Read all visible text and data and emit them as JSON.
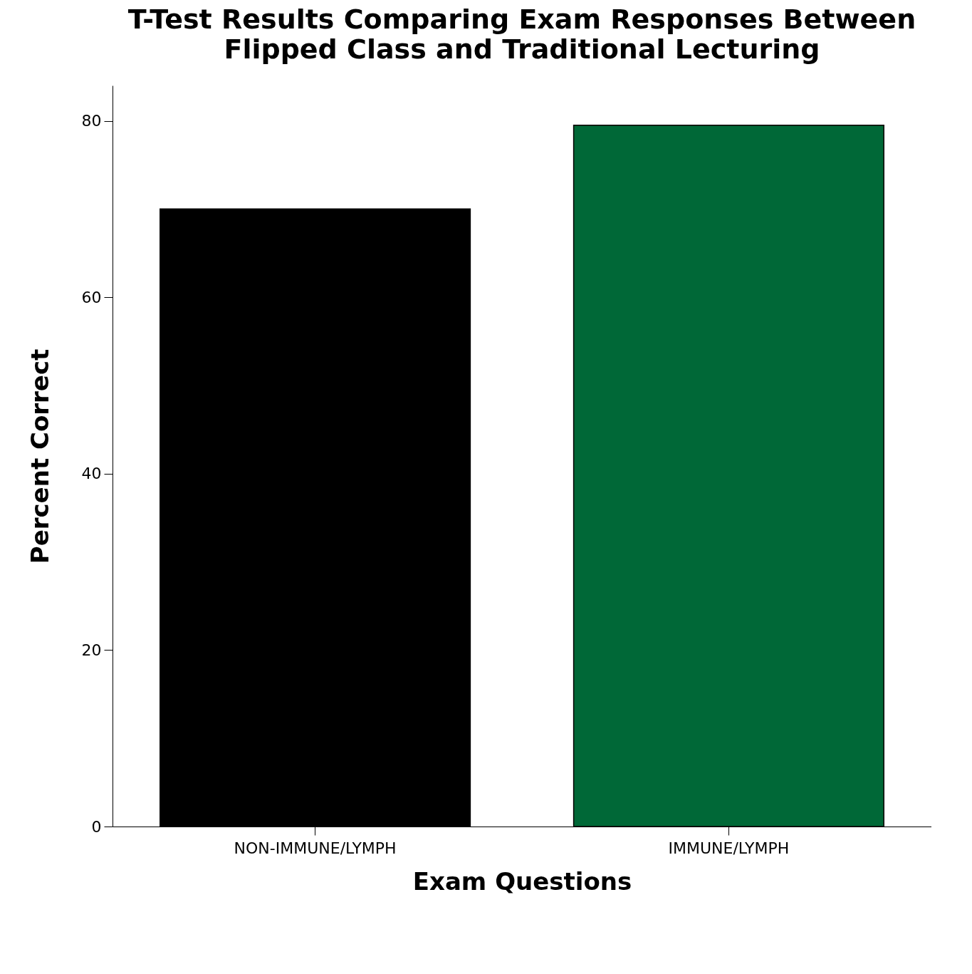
{
  "chart_data": {
    "type": "bar",
    "title": [
      "T-Test Results Comparing Exam Responses Between",
      "Flipped Class and Traditional Lecturing"
    ],
    "xlabel": "Exam Questions",
    "ylabel": "Percent Correct",
    "categories": [
      "NON-IMMUNE/LYMPH",
      "IMMUNE/LYMPH"
    ],
    "values": [
      70,
      79.5
    ],
    "colors": [
      "#000000",
      "#006837"
    ],
    "ylim": [
      0,
      84
    ],
    "yticks": [
      0,
      20,
      40,
      60,
      80
    ],
    "grid": false,
    "legend": false
  }
}
